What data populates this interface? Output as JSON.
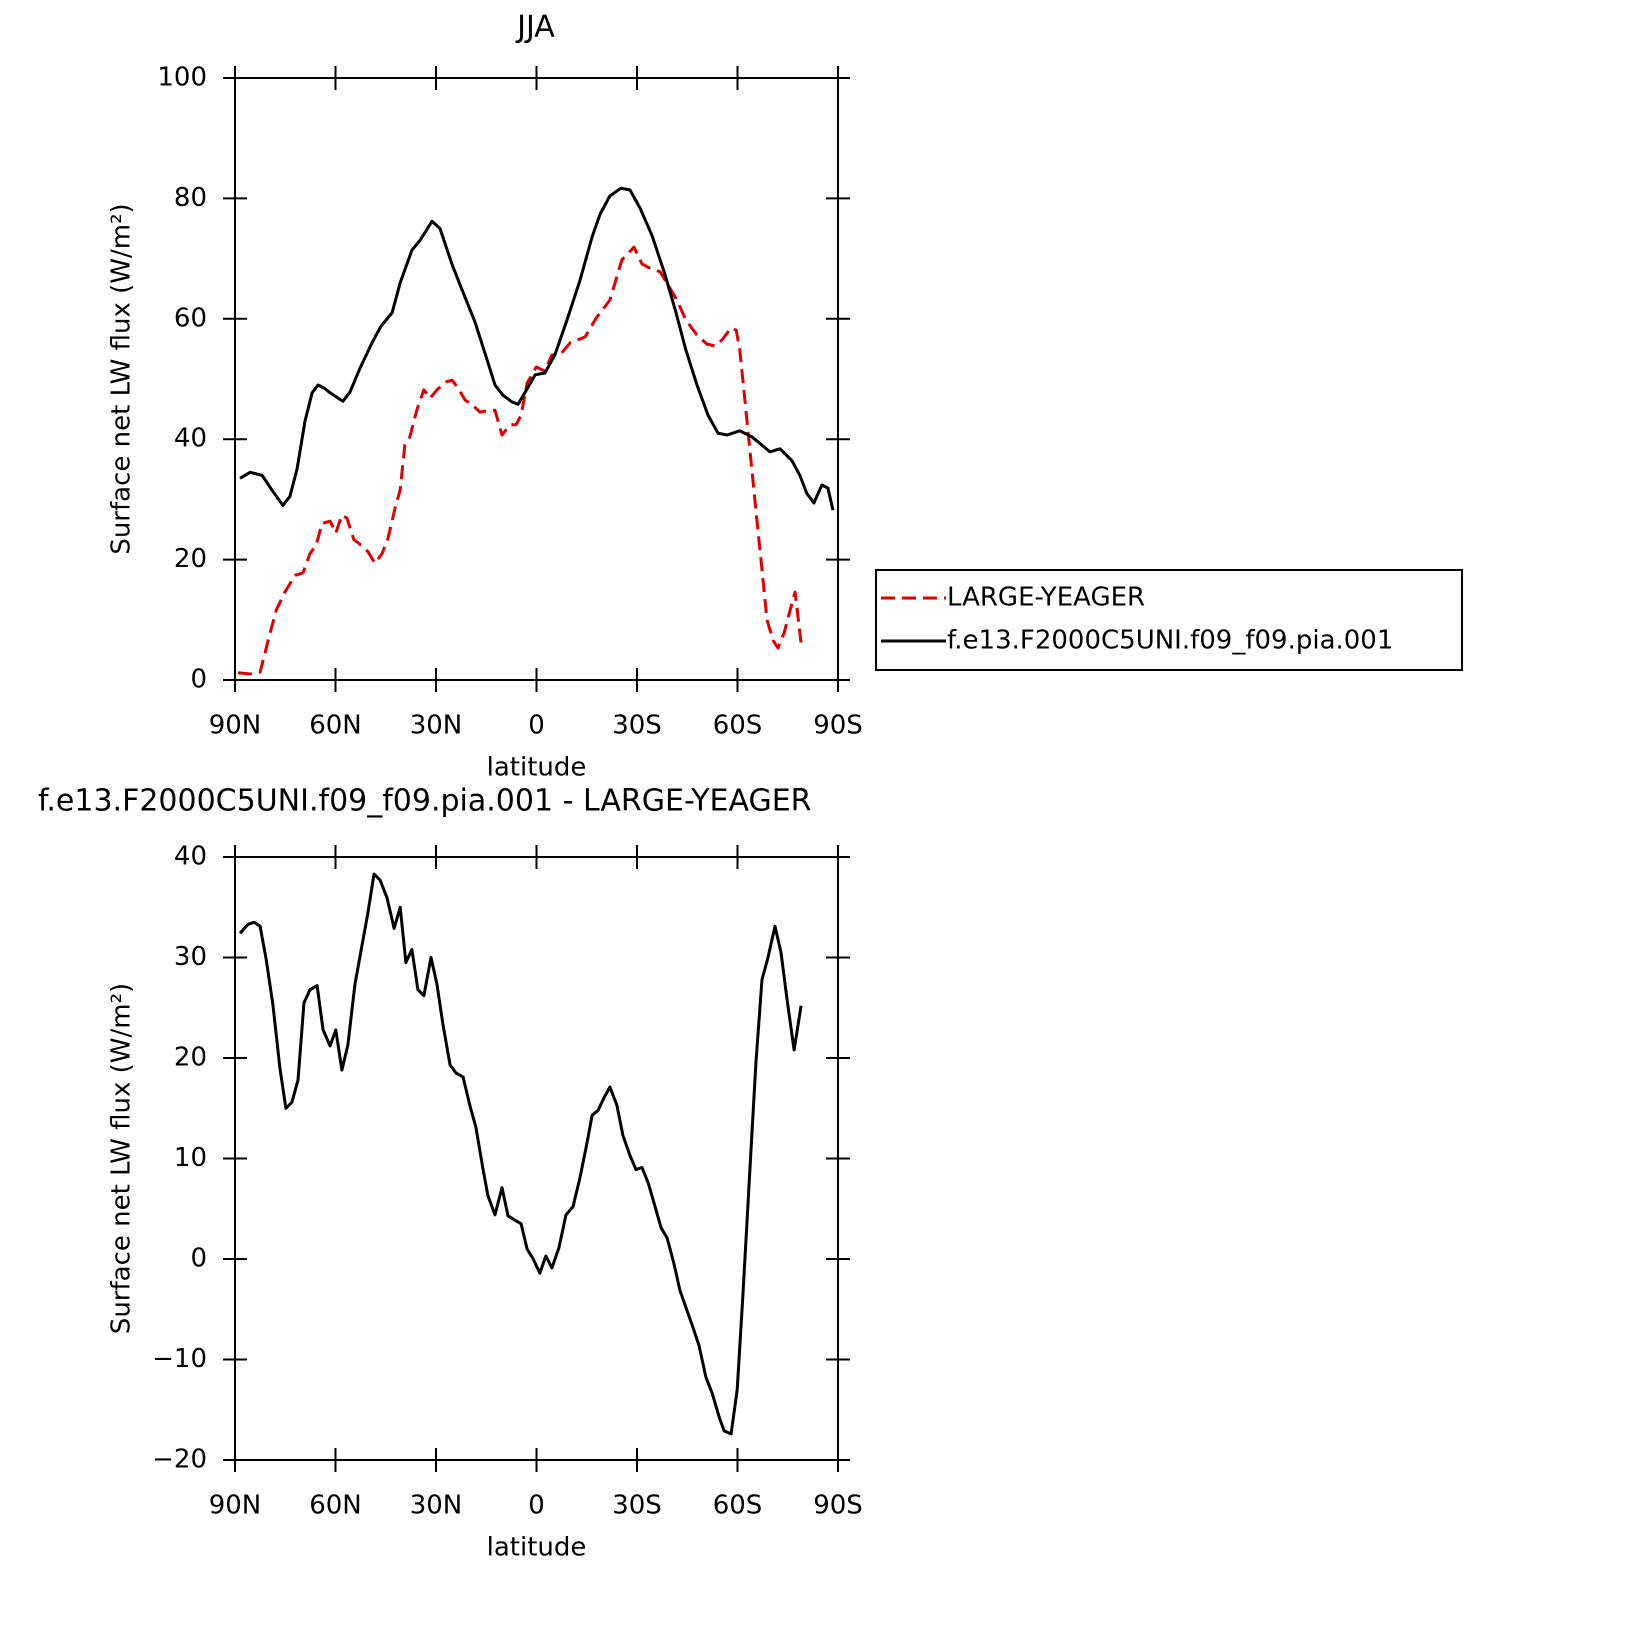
{
  "chart_data": [
    {
      "type": "line",
      "title": "JJA",
      "x_label": "latitude",
      "y_label": "Surface net LW flux (W/m²)",
      "xlim": [
        90,
        -90
      ],
      "xticks": [
        {
          "value": 90,
          "label": "90N"
        },
        {
          "value": 60,
          "label": "60N"
        },
        {
          "value": 30,
          "label": "30N"
        },
        0,
        {
          "value": -30,
          "label": "30S"
        },
        {
          "value": -60,
          "label": "60S"
        },
        {
          "value": -90,
          "label": "90S"
        }
      ],
      "ylim": [
        0,
        100
      ],
      "yticks": [
        0,
        20,
        40,
        60,
        80,
        100
      ],
      "legend": "right",
      "series": [
        {
          "name": "LARGE-YEAGER",
          "color": "#e00000",
          "line_style": "dashed",
          "x": [
            89.1,
            85.5,
            82.5,
            80.1,
            77.7,
            75.1,
            72.1,
            69.7,
            67.6,
            65.8,
            64.0,
            61.6,
            59.9,
            58.1,
            56.6,
            54.5,
            52.1,
            50.3,
            48.2,
            46.1,
            44.3,
            42.2,
            40.7,
            39.3,
            37.8,
            35.7,
            33.6,
            31.8,
            29.7,
            27.0,
            25.2,
            23.4,
            21.3,
            19.3,
            16.9,
            13.9,
            12.4,
            10.3,
            7.9,
            6.1,
            4.6,
            2.8,
            0.1,
            -2.5,
            -4.6,
            -7.0,
            -10.0,
            -14.5,
            -17.8,
            -21.9,
            -25.5,
            -29.1,
            -31.5,
            -33.9,
            -36.9,
            -39.3,
            -41.9,
            -44.6,
            -47.9,
            -50.9,
            -53.3,
            -55.4,
            -58.1,
            -59.6,
            -60.7,
            -62.2,
            -63.7,
            -65.5,
            -67.3,
            -68.8,
            -70.6,
            -72.1,
            -73.9,
            -75.7,
            -77.2,
            -79.0
          ],
          "values": [
            1.2,
            1,
            1.3,
            6.6,
            11.6,
            14.6,
            17.4,
            17.8,
            21,
            22.4,
            26,
            26.4,
            24.4,
            27.4,
            26.9,
            23.3,
            22.3,
            21.3,
            19.4,
            21,
            23.6,
            28.6,
            31.6,
            39,
            40.4,
            44.9,
            48.2,
            46.8,
            48.2,
            49.5,
            49.8,
            48.5,
            46.5,
            45.8,
            44.5,
            44.8,
            44.8,
            40.7,
            42.4,
            42.4,
            44,
            49.3,
            52,
            51.3,
            54,
            54,
            56,
            57,
            60.1,
            63.1,
            69.8,
            71.9,
            69.1,
            68.4,
            67.8,
            65.6,
            63.1,
            59.8,
            57.3,
            55.8,
            55.5,
            56.5,
            58.5,
            58.1,
            54.8,
            46.5,
            38.2,
            28.2,
            18.3,
            10,
            6.6,
            5.3,
            7.8,
            11.6,
            14.6,
            6.1
          ]
        },
        {
          "name": "f.e13.F2000C5UNI.f09_f09.pia.001",
          "color": "#000000",
          "line_style": "solid",
          "x": [
            88.5,
            85.5,
            81.9,
            78.9,
            75.7,
            73.6,
            71.5,
            69.1,
            67.0,
            65.2,
            63.4,
            61.6,
            57.8,
            55.7,
            52.7,
            49.1,
            46.4,
            43.1,
            40.7,
            37.2,
            34.8,
            31.2,
            28.8,
            25.2,
            22.2,
            18.4,
            15.1,
            12.4,
            10.0,
            7.3,
            5.5,
            3.4,
            0.4,
            -2.5,
            -5.5,
            -9.1,
            -13.0,
            -16.6,
            -19.0,
            -21.9,
            -25.2,
            -27.9,
            -30.9,
            -34.5,
            -38.4,
            -41.6,
            -44.6,
            -47.9,
            -51.2,
            -54.2,
            -56.9,
            -60.7,
            -64.3,
            -69.7,
            -72.7,
            -76.3,
            -78.7,
            -80.7,
            -82.8,
            -85.2,
            -87.0,
            -88.5
          ],
          "values": [
            33.5,
            34.5,
            34,
            31.5,
            29,
            30.5,
            35,
            43,
            47.7,
            49,
            48.5,
            47.7,
            46.3,
            47.8,
            51.8,
            56,
            58.8,
            61,
            66,
            71.4,
            73,
            76.2,
            75,
            69,
            64.8,
            59.5,
            53.8,
            49,
            47.3,
            46.2,
            45.8,
            47.8,
            50.7,
            51,
            54,
            59.8,
            66.4,
            73.6,
            77.4,
            80.4,
            81.7,
            81.4,
            78.4,
            73.8,
            67.3,
            61.1,
            54.8,
            49,
            44,
            41,
            40.7,
            41.4,
            40.4,
            37.9,
            38.4,
            36.4,
            33.9,
            31,
            29.4,
            32.4,
            31.9,
            28.2
          ]
        }
      ]
    },
    {
      "type": "line",
      "title": "f.e13.F2000C5UNI.f09_f09.pia.001 - LARGE-YEAGER",
      "x_label": "latitude",
      "y_label": "Surface net LW flux (W/m²)",
      "xlim": [
        90,
        -90
      ],
      "xticks": [
        {
          "value": 90,
          "label": "90N"
        },
        {
          "value": 60,
          "label": "60N"
        },
        {
          "value": 30,
          "label": "30N"
        },
        0,
        {
          "value": -30,
          "label": "30S"
        },
        {
          "value": -60,
          "label": "60S"
        },
        {
          "value": -90,
          "label": "90S"
        }
      ],
      "ylim": [
        -20,
        40
      ],
      "yticks": [
        {
          "value": -20,
          "label": "−20"
        },
        {
          "value": -10,
          "label": "−10"
        },
        0,
        10,
        20,
        30,
        40
      ],
      "series": [
        {
          "color": "#000000",
          "line_style": "solid",
          "x": [
            88.5,
            86.1,
            84.3,
            82.5,
            80.7,
            78.7,
            76.6,
            74.8,
            73.0,
            71.2,
            69.4,
            67.6,
            65.5,
            63.7,
            61.6,
            59.9,
            58.1,
            56.3,
            54.2,
            52.1,
            50.3,
            48.5,
            46.7,
            44.6,
            42.5,
            40.7,
            39.0,
            37.2,
            35.4,
            33.6,
            31.5,
            29.7,
            27.9,
            25.8,
            24.0,
            21.9,
            19.9,
            18.1,
            16.0,
            14.5,
            12.4,
            10.3,
            8.5,
            6.6,
            4.6,
            2.8,
            1.0,
            -1.0,
            -2.8,
            -4.6,
            -6.7,
            -8.8,
            -10.9,
            -13.0,
            -15.1,
            -16.6,
            -18.4,
            -20.1,
            -21.9,
            -24.0,
            -25.8,
            -27.9,
            -29.7,
            -31.5,
            -33.3,
            -35.4,
            -37.2,
            -39.0,
            -41.0,
            -42.8,
            -44.9,
            -46.7,
            -48.5,
            -50.6,
            -52.4,
            -54.5,
            -56.0,
            -58.1,
            -59.9,
            -61.6,
            -63.7,
            -65.5,
            -67.3,
            -69.1,
            -71.2,
            -73.0,
            -74.8,
            -76.9,
            -79.0
          ],
          "values": [
            32.4,
            33.3,
            33.5,
            33.1,
            29.8,
            25.3,
            19,
            15,
            15.6,
            17.8,
            25.5,
            26.8,
            27.2,
            22.8,
            21.2,
            22.8,
            18.8,
            21.3,
            27.3,
            31.2,
            34.5,
            38.3,
            37.7,
            35.9,
            32.9,
            35,
            29.5,
            30.8,
            26.8,
            26.2,
            30,
            27.3,
            23.3,
            19.3,
            18.5,
            18.1,
            15.3,
            13.1,
            9,
            6.3,
            4.4,
            7.1,
            4.3,
            3.9,
            3.5,
            1,
            0,
            -1.4,
            0.3,
            -0.9,
            1.1,
            4.4,
            5.2,
            8.1,
            11.6,
            14.3,
            14.8,
            16,
            17.1,
            15.3,
            12.3,
            10.3,
            8.9,
            9.1,
            7.6,
            5.2,
            3.1,
            2.1,
            -0.4,
            -3.1,
            -5.1,
            -6.8,
            -8.6,
            -11.8,
            -13.3,
            -15.7,
            -17.1,
            -17.4,
            -13,
            -3.6,
            8.9,
            19.5,
            27.8,
            30,
            33.1,
            30.5,
            25.8,
            20.8,
            25.2
          ]
        }
      ]
    }
  ]
}
